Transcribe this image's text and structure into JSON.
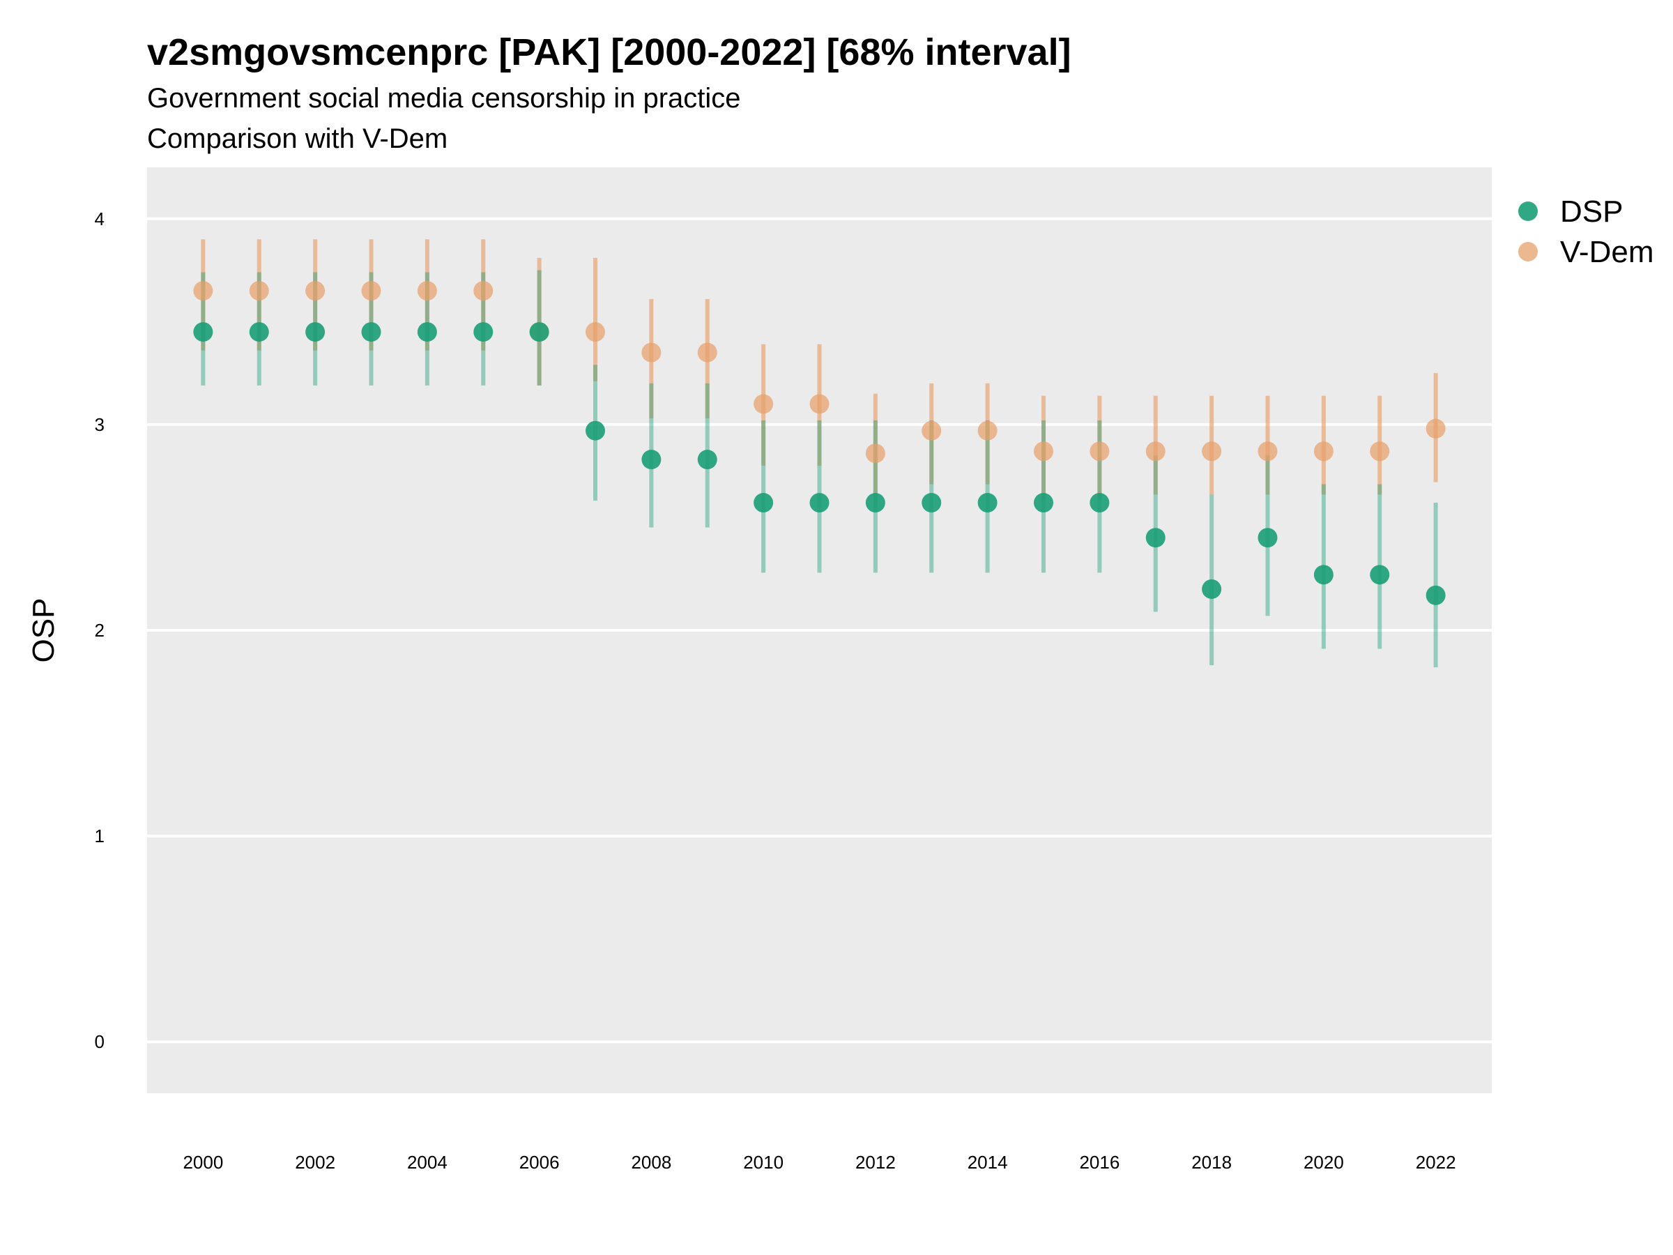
{
  "chart_data": {
    "type": "scatter",
    "title": "v2smgovsmcenprc [PAK] [2000-2022] [68% interval]",
    "subtitle": "Government social media censorship in practice",
    "subtitle2": "Comparison with V-Dem",
    "xlabel": "",
    "ylabel": "OSP",
    "xlim": [
      1999,
      2023
    ],
    "ylim": [
      -0.25,
      4.25
    ],
    "x_ticks": [
      "2000",
      "2002",
      "2004",
      "2006",
      "2008",
      "2010",
      "2012",
      "2014",
      "2016",
      "2018",
      "2020",
      "2022"
    ],
    "y_ticks": [
      "0",
      "1",
      "2",
      "3",
      "4"
    ],
    "grid": true,
    "legend_position": "right",
    "x": [
      2000,
      2001,
      2002,
      2003,
      2004,
      2005,
      2006,
      2007,
      2008,
      2009,
      2010,
      2011,
      2012,
      2013,
      2014,
      2015,
      2016,
      2017,
      2018,
      2019,
      2020,
      2021,
      2022
    ],
    "series": [
      {
        "name": "DSP",
        "color": "#1b9e77",
        "values": [
          3.45,
          3.45,
          3.45,
          3.45,
          3.45,
          3.45,
          3.45,
          2.97,
          2.83,
          2.83,
          2.62,
          2.62,
          2.62,
          2.62,
          2.62,
          2.62,
          2.62,
          2.45,
          2.2,
          2.45,
          2.27,
          2.27,
          2.17
        ],
        "lower": [
          3.19,
          3.19,
          3.19,
          3.19,
          3.19,
          3.19,
          3.19,
          2.63,
          2.5,
          2.5,
          2.28,
          2.28,
          2.28,
          2.28,
          2.28,
          2.28,
          2.28,
          2.09,
          1.83,
          2.07,
          1.91,
          1.91,
          1.82
        ],
        "upper": [
          3.74,
          3.74,
          3.74,
          3.74,
          3.74,
          3.74,
          3.75,
          3.29,
          3.2,
          3.2,
          3.02,
          3.02,
          3.02,
          3.02,
          3.02,
          3.02,
          3.02,
          2.85,
          2.66,
          2.85,
          2.71,
          2.71,
          2.62
        ]
      },
      {
        "name": "V-Dem",
        "color": "#e6a06a",
        "values": [
          3.65,
          3.65,
          3.65,
          3.65,
          3.65,
          3.65,
          3.45,
          3.45,
          3.35,
          3.35,
          3.1,
          3.1,
          2.86,
          2.97,
          2.97,
          2.87,
          2.87,
          2.87,
          2.87,
          2.87,
          2.87,
          2.87,
          2.98
        ],
        "lower": [
          3.36,
          3.36,
          3.36,
          3.36,
          3.36,
          3.36,
          3.19,
          3.21,
          3.03,
          3.03,
          2.8,
          2.8,
          2.6,
          2.71,
          2.71,
          2.63,
          2.63,
          2.66,
          2.66,
          2.66,
          2.66,
          2.66,
          2.72
        ],
        "upper": [
          3.9,
          3.9,
          3.9,
          3.9,
          3.9,
          3.9,
          3.81,
          3.81,
          3.61,
          3.61,
          3.39,
          3.39,
          3.15,
          3.2,
          3.2,
          3.14,
          3.14,
          3.14,
          3.14,
          3.14,
          3.14,
          3.14,
          3.25
        ]
      }
    ]
  }
}
